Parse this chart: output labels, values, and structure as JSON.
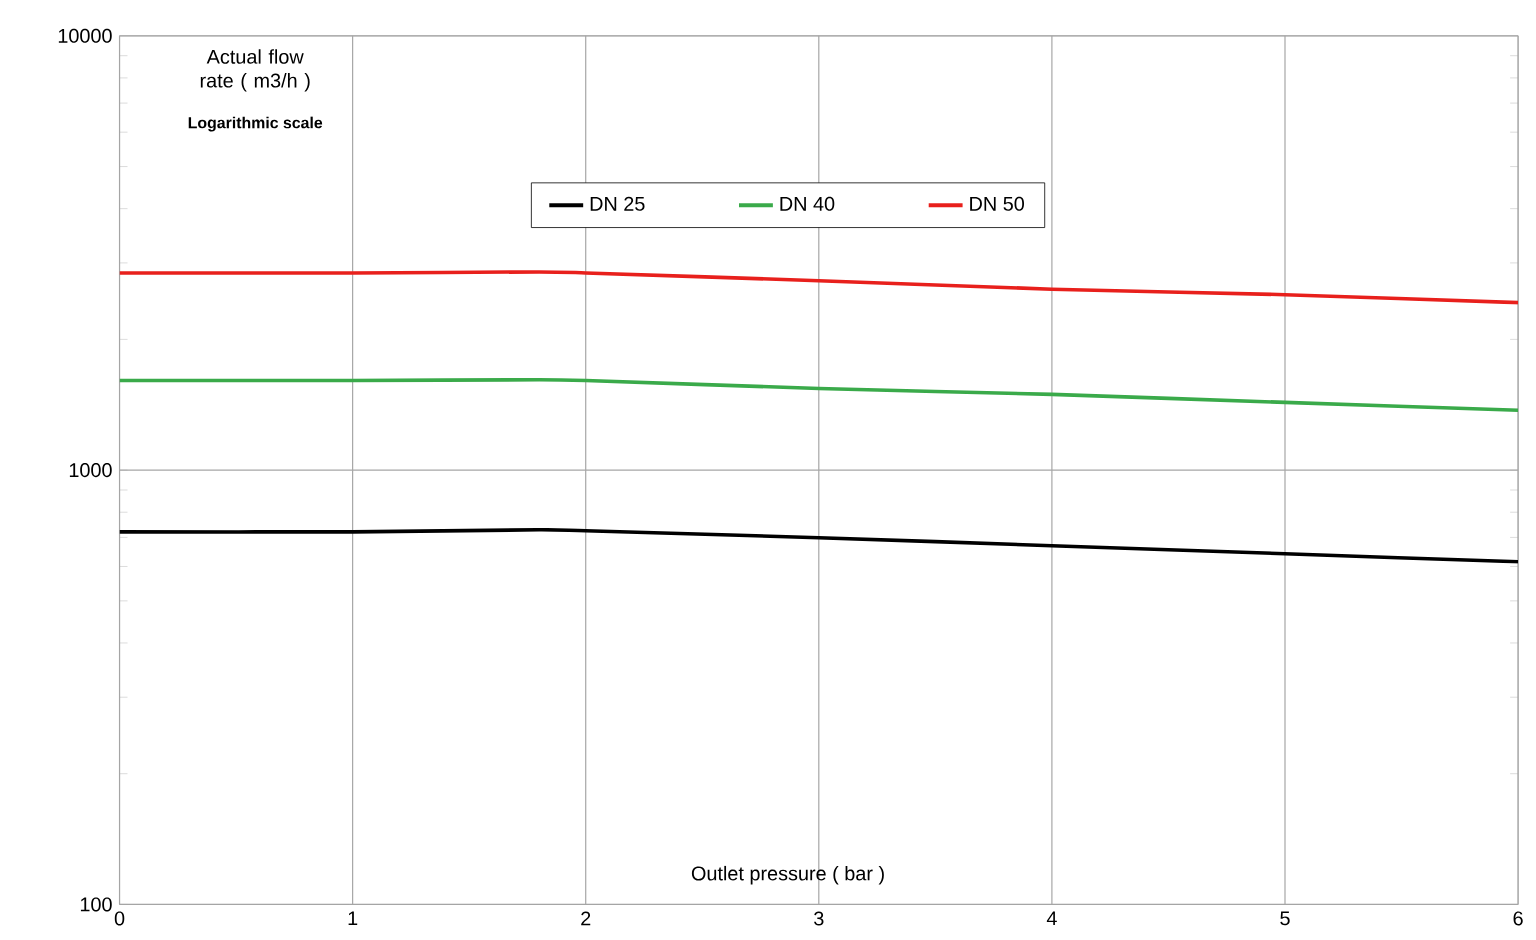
{
  "chart_data": {
    "type": "line",
    "ylabel": "Actual flow rate ( m3/h )",
    "xlabel": "Outlet pressure ( bar )",
    "annotations": [
      "Logarithmic scale"
    ],
    "log": "y",
    "grid": true,
    "legend": "top",
    "line_style": "solid",
    "marker": "none",
    "xlim": [
      0,
      6
    ],
    "xticks": [
      0,
      1,
      2,
      3,
      4,
      5,
      6
    ],
    "ylim": [
      100,
      10000
    ],
    "yticks": [
      100,
      1000,
      10000
    ],
    "x": [
      0,
      1,
      1.8,
      2,
      3,
      4,
      5,
      6
    ],
    "series": [
      {
        "name": "DN 25",
        "color": "#000000",
        "values": [
          721,
          721,
          729,
          725,
          699,
          670,
          642,
          615
        ]
      },
      {
        "name": "DN 40",
        "color": "#3aaa4a",
        "values": [
          1608,
          1608,
          1615,
          1608,
          1542,
          1494,
          1432,
          1373
        ]
      },
      {
        "name": "DN 50",
        "color": "#e8201c",
        "values": [
          2845,
          2845,
          2860,
          2845,
          2730,
          2610,
          2535,
          2430
        ]
      }
    ]
  }
}
